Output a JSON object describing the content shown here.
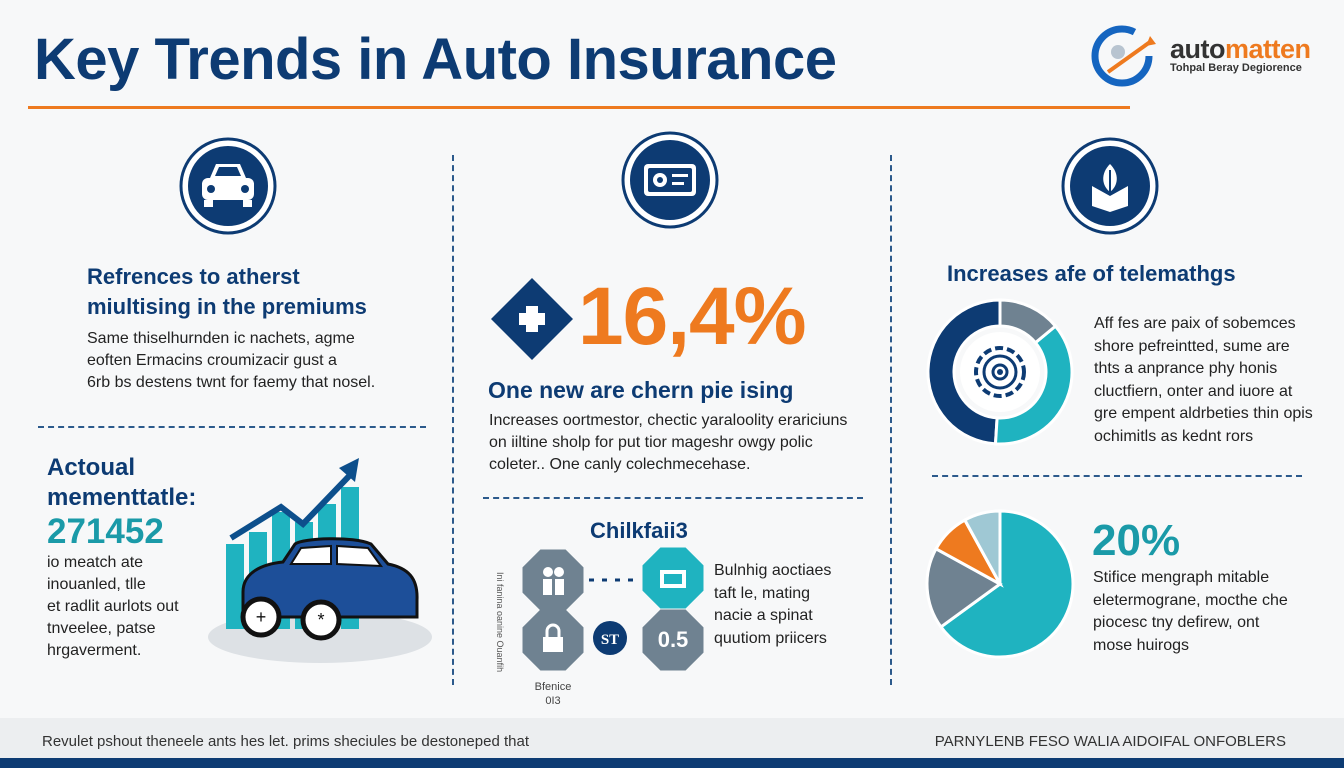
{
  "header": {
    "title": "Key Trends in Auto Insurance"
  },
  "logo": {
    "name_part1": "auto",
    "name_part2": "matten",
    "tagline": "Tohpal Beray Degiorence"
  },
  "colors": {
    "navy": "#0d3b73",
    "orange": "#ee7a1f",
    "teal": "#1fb3c0",
    "gray": "#6f8291",
    "lightblue": "#9fc8d4"
  },
  "column1": {
    "icon": "car-icon",
    "heading_line1": "Refrences to atherst",
    "heading_line2": "miultising in the premiums",
    "body": [
      "Same thiselhurnden ic nachets, agme",
      "eoften Ermacins croumizacir gust a",
      "6rb bs destens twnt for faemy that nosel."
    ],
    "stat_label_line1": "Actoual",
    "stat_label_line2": "mementtatle:",
    "stat_value": "271452",
    "stat_body": [
      "io meatch ate",
      "inouanled, tlle",
      "et radlit aurlots out",
      "tnveelee, patse",
      "hrgaverment."
    ],
    "illustration": "car-with-rising-bar-chart"
  },
  "column2": {
    "icon": "id-card-icon",
    "big_icon": "medical-cross-diamond-icon",
    "stat_value": "16,4%",
    "heading": "One new are chern pie ising",
    "body": [
      "Increases oortmestor, chectic yaraloolity erariciuns",
      "on iiltine sholp for put tior mageshr owgy polic",
      "coleter.. One canly colechmecehase."
    ],
    "sub_heading": "Chilkfaii3",
    "hexagons": [
      {
        "icon": "people-icon"
      },
      {
        "icon": "monitor-icon"
      },
      {
        "icon": "lock-icon"
      },
      {
        "label": "ST"
      },
      {
        "label": "0.5"
      }
    ],
    "side_label": "Ini fanina oanine Ouanfih",
    "bottom_label_line1": "Bfenice",
    "bottom_label_line2": "0I3",
    "right_text": [
      "Bulnhig aoctiaes",
      "taft le, mating",
      "nacie a spinat",
      "quutiom priicers"
    ]
  },
  "column3": {
    "icon": "growth-leaf-icon",
    "heading": "Increases afe of telemathgs",
    "donut_icon": "gear-icon",
    "donut": [
      {
        "value": 14,
        "color": "#6f8291"
      },
      {
        "value": 37,
        "color": "#1fb3c0"
      },
      {
        "value": 49,
        "color": "#0d3b73"
      }
    ],
    "body": [
      "Aff fes are paix of sobemces",
      "shore pefreintted, sume are",
      "thts a anprance phy honis",
      "cluctfiern, onter and iuore at",
      "gre empent aldrbeties thin opis",
      "ochimitls as kednt rors"
    ],
    "pie": [
      {
        "value": 65,
        "color": "#1fb3c0"
      },
      {
        "value": 18,
        "color": "#6f8291"
      },
      {
        "value": 9,
        "color": "#ee7a1f"
      },
      {
        "value": 8,
        "color": "#9fc8d4"
      }
    ],
    "stat_value": "20%",
    "stat_body": [
      "Stifice mengraph mitable",
      "eletermograne, mocthe che",
      "piocesc tny defirew, ont",
      "mose huirogs"
    ]
  },
  "footer": {
    "left_text": "Revulet pshout theneele ants hes let. prims sheciules be destoneped that",
    "right_text": "PARNYLENB FESO WALIA AIDOIFAL ONFOBLERS"
  }
}
